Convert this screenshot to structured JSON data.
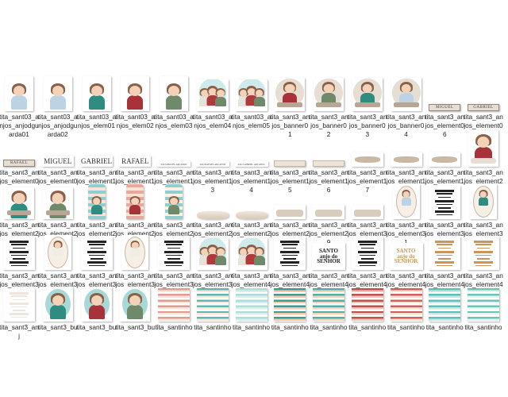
{
  "colors": {
    "skin": "#f3d2b8",
    "hair": "#8a6048",
    "teal": "#8fcfcf",
    "beige": "#e6ddd3",
    "red": "#b03a3a",
    "gold": "#c9955a"
  },
  "rows": [
    {
      "items": [
        {
          "label": "tita_sant03_anjos_anjodguarda01",
          "kind": "angel",
          "robe": "#bcd3e6"
        },
        {
          "label": "tita_sant03_anjos_anjodguarda02",
          "kind": "angel",
          "robe": "#bcd3e6"
        },
        {
          "label": "tita_sant03_anjos_elem01",
          "kind": "angel",
          "robe": "#2f8c80"
        },
        {
          "label": "tita_sant03_anjos_elem02",
          "kind": "angel",
          "robe": "#a8323a"
        },
        {
          "label": "tita_sant03_anjos_elem03",
          "kind": "angel",
          "robe": "#6f8a6a"
        },
        {
          "label": "tita_sant03_anjos_elem04",
          "kind": "group"
        },
        {
          "label": "tita_sant03_anjos_elem05",
          "kind": "group"
        },
        {
          "label": "tita_sant3_anjos_banner01",
          "kind": "banner",
          "robe": "#a8323a"
        },
        {
          "label": "tita_sant3_anjos_banner02",
          "kind": "banner",
          "robe": "#6f8a6a"
        },
        {
          "label": "tita_sant3_anjos_banner03",
          "kind": "banner",
          "robe": "#2f8c80"
        },
        {
          "label": "tita_sant3_anjos_banner04",
          "kind": "banner",
          "robe": "#bcd3e6"
        },
        {
          "label": "tita_sant3_anjos_element06",
          "kind": "smallplate",
          "text": "MIGUEL"
        },
        {
          "label": "tita_sant3_anjos_element07",
          "kind": "smallplate",
          "text": "GABRIEL"
        }
      ]
    },
    {
      "items": [
        {
          "label": "tita_sant3_anjos_element08",
          "kind": "smallplate",
          "text": "RAFAEL"
        },
        {
          "label": "tita_sant3_anjos_element09",
          "kind": "bigplate",
          "text": "MIGUEL"
        },
        {
          "label": "tita_sant3_anjos_element10",
          "kind": "bigplate",
          "text": "GABRIEL"
        },
        {
          "label": "tita_sant3_anjos_element11",
          "kind": "bigplate",
          "text": "RAFAEL"
        },
        {
          "label": "tita_sant3_anjos_element12",
          "kind": "tinytext",
          "text": "SÃO MIGUEL ARCANJO"
        },
        {
          "label": "tita_sant3_anjos_element13",
          "kind": "tinytext",
          "text": "SÃO RAFAEL ARCANJO"
        },
        {
          "label": "tita_sant3_anjos_element14",
          "kind": "tinytext",
          "text": "SÃO GABRIEL ARCANJO"
        },
        {
          "label": "tita_sant3_anjos_element15",
          "kind": "strip"
        },
        {
          "label": "tita_sant3_anjos_element16",
          "kind": "strip"
        },
        {
          "label": "tita_sant3_anjos_element17",
          "kind": "ribbon"
        },
        {
          "label": "tita_sant3_anjos_element18",
          "kind": "ribbon"
        },
        {
          "label": "tita_sant3_anjos_element19",
          "kind": "ribbon"
        },
        {
          "label": "tita_sant3_anjos_element20",
          "kind": "bigangel",
          "robe": "#a8323a"
        }
      ]
    },
    {
      "items": [
        {
          "label": "tita_sant3_anjos_element21",
          "kind": "portrait",
          "robe": "#2f8c80"
        },
        {
          "label": "tita_sant3_anjos_element22",
          "kind": "portrait",
          "robe": "#6f8a6a"
        },
        {
          "label": "tita_sant3_anjos_element23",
          "kind": "tag",
          "stripes": [
            "#8fcfcf",
            "#fbe3d3"
          ],
          "robe": "#2f8c80"
        },
        {
          "label": "tita_sant3_anjos_element24",
          "kind": "tag",
          "stripes": [
            "#e8a8a0",
            "#fbe3d3"
          ],
          "robe": "#a8323a"
        },
        {
          "label": "tita_sant3_anjos_element25",
          "kind": "tag",
          "stripes": [
            "#8fcfcf",
            "#fff1e0"
          ],
          "robe": "#6f8a6a"
        },
        {
          "label": "tita_sant3_anjos_element26",
          "kind": "scroll"
        },
        {
          "label": "tita_sant3_anjos_element27",
          "kind": "scroll"
        },
        {
          "label": "tita_sant3_anjos_element28",
          "kind": "scrollbanner"
        },
        {
          "label": "tita_sant3_anjos_element29",
          "kind": "scrollbanner"
        },
        {
          "label": "tita_sant3_anjos_element30",
          "kind": "scrollbanner"
        },
        {
          "label": "tita_sant3_anjos_element31",
          "kind": "oval",
          "robe": "#bcd3e6"
        },
        {
          "label": "tita_sant3_anjos_element32",
          "kind": "textcard",
          "color": "#222"
        },
        {
          "label": "tita_sant3_anjos_element33",
          "kind": "oval",
          "robe": "#2f8c80"
        }
      ]
    },
    {
      "items": [
        {
          "label": "tita_sant3_anjos_element34",
          "kind": "textcard",
          "color": "#222"
        },
        {
          "label": "tita_sant3_anjos_element35",
          "kind": "oval",
          "robe": "#f0ece6"
        },
        {
          "label": "tita_sant3_anjos_element36",
          "kind": "textcard",
          "color": "#222"
        },
        {
          "label": "tita_sant3_anjos_element37",
          "kind": "oval",
          "robe": "#f0ece6"
        },
        {
          "label": "tita_sant3_anjos_element38",
          "kind": "textcard",
          "color": "#222"
        },
        {
          "label": "tita_sant3_anjos_element39",
          "kind": "group"
        },
        {
          "label": "tita_sant3_anjos_element40",
          "kind": "group"
        },
        {
          "label": "tita_sant3_anjos_element41",
          "kind": "textcard",
          "color": "#222"
        },
        {
          "label": "tita_sant3_anjos_element42",
          "kind": "santo",
          "color": "#222",
          "text": "SANTO anjo do SENHOR"
        },
        {
          "label": "tita_sant3_anjos_element43",
          "kind": "textcard",
          "color": "#222"
        },
        {
          "label": "tita_sant3_anjos_element44",
          "kind": "santo",
          "color": "#c9955a",
          "text": "SANTO anjo do SENHOR"
        },
        {
          "label": "tita_sant3_anjos_element45",
          "kind": "textcard",
          "color": "#c9955a"
        },
        {
          "label": "tita_sant3_anjos_element46",
          "kind": "textcard",
          "color": "#c9955a"
        }
      ]
    },
    {
      "items": [
        {
          "label": "tita_sant3_anj",
          "kind": "textcard",
          "color": "#eee6dc"
        },
        {
          "label": "tita_sant3_bu",
          "kind": "circle",
          "robe": "#2f8c80"
        },
        {
          "label": "tita_sant3_bu",
          "kind": "circle",
          "robe": "#a8323a"
        },
        {
          "label": "tita_sant3_bu",
          "kind": "circle",
          "robe": "#6f8a6a"
        },
        {
          "label": "tita_santinho",
          "kind": "stripes",
          "stripes": [
            "#e29a94",
            "#fde6d8",
            "#fff"
          ]
        },
        {
          "label": "tita_santinho",
          "kind": "stripes",
          "stripes": [
            "#5fb8b4",
            "#fde6d8",
            "#fff"
          ]
        },
        {
          "label": "tita_santinho",
          "kind": "stripes",
          "stripes": [
            "#a8dedd",
            "#d9efe6",
            "#fff"
          ]
        },
        {
          "label": "tita_santinho",
          "kind": "stripes",
          "stripes": [
            "#3f9a94",
            "#f6c9a8",
            "#fff"
          ]
        },
        {
          "label": "tita_santinho",
          "kind": "stripes",
          "stripes": [
            "#4fb0a8",
            "#f8d3b8",
            "#fff"
          ]
        },
        {
          "label": "tita_santinho",
          "kind": "stripes",
          "stripes": [
            "#c0504f",
            "#f3c5b5",
            "#fff"
          ]
        },
        {
          "label": "tita_santinho",
          "kind": "stripes",
          "stripes": [
            "#d0605c",
            "#fde2d2",
            "#fff"
          ]
        },
        {
          "label": "tita_santinho",
          "kind": "stripes",
          "stripes": [
            "#5dc0bc",
            "#c8e8e0",
            "#fff"
          ]
        },
        {
          "label": "tita_santinho",
          "kind": "stripes",
          "stripes": [
            "#6cc4b8",
            "#e6f4ee",
            "#fff"
          ]
        }
      ]
    }
  ]
}
